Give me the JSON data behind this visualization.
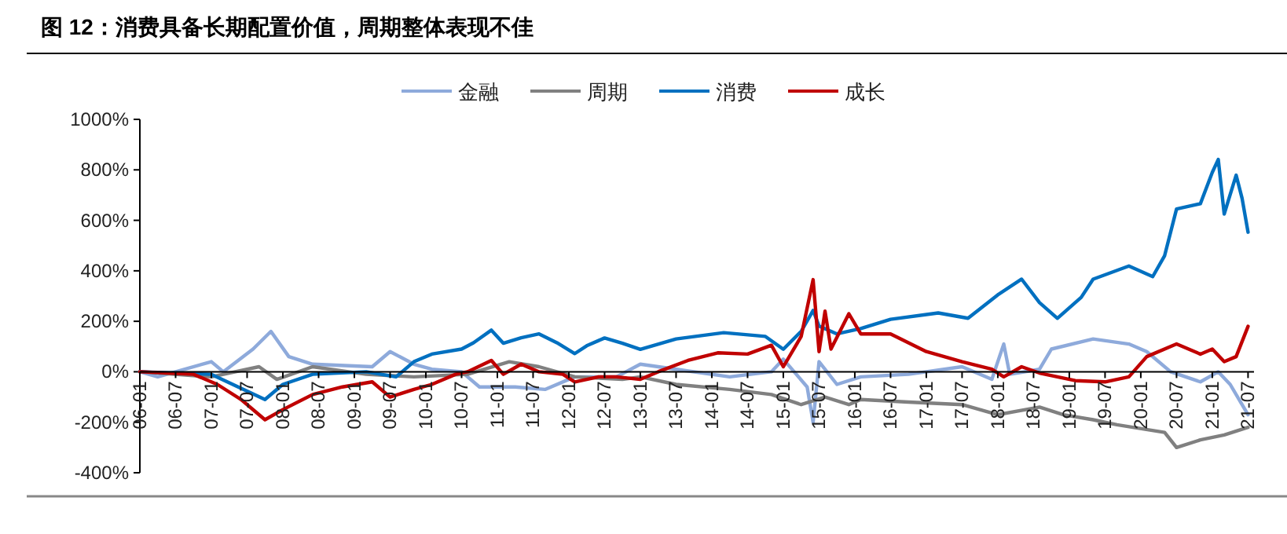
{
  "chart_data": {
    "type": "line",
    "title": "图 12：消费具备长期配置价值，周期整体表现不佳",
    "legend": "top",
    "grid": false,
    "line_style": "solid",
    "xlim": [
      "2006-01",
      "2021-08"
    ],
    "xticks": [
      {
        "value": "2006-01",
        "label": "06-01"
      },
      {
        "value": "2006-07",
        "label": "06-07"
      },
      {
        "value": "2007-01",
        "label": "07-01"
      },
      {
        "value": "2007-07",
        "label": "07-07"
      },
      {
        "value": "2008-01",
        "label": "08-01"
      },
      {
        "value": "2008-07",
        "label": "08-07"
      },
      {
        "value": "2009-01",
        "label": "09-01"
      },
      {
        "value": "2009-07",
        "label": "09-07"
      },
      {
        "value": "2010-01",
        "label": "10-01"
      },
      {
        "value": "2010-07",
        "label": "10-07"
      },
      {
        "value": "2011-01",
        "label": "11-01"
      },
      {
        "value": "2011-07",
        "label": "11-07"
      },
      {
        "value": "2012-01",
        "label": "12-01"
      },
      {
        "value": "2012-07",
        "label": "12-07"
      },
      {
        "value": "2013-01",
        "label": "13-01"
      },
      {
        "value": "2013-07",
        "label": "13-07"
      },
      {
        "value": "2014-01",
        "label": "14-01"
      },
      {
        "value": "2014-07",
        "label": "14-07"
      },
      {
        "value": "2015-01",
        "label": "15-01"
      },
      {
        "value": "2015-07",
        "label": "15-07"
      },
      {
        "value": "2016-01",
        "label": "16-01"
      },
      {
        "value": "2016-07",
        "label": "16-07"
      },
      {
        "value": "2017-01",
        "label": "17-01"
      },
      {
        "value": "2017-07",
        "label": "17-07"
      },
      {
        "value": "2018-01",
        "label": "18-01"
      },
      {
        "value": "2018-07",
        "label": "18-07"
      },
      {
        "value": "2019-01",
        "label": "19-01"
      },
      {
        "value": "2019-07",
        "label": "19-07"
      },
      {
        "value": "2020-01",
        "label": "20-01"
      },
      {
        "value": "2020-07",
        "label": "20-07"
      },
      {
        "value": "2021-01",
        "label": "21-01"
      },
      {
        "value": "2021-07",
        "label": "21-07"
      }
    ],
    "ylim": [
      -400,
      1000
    ],
    "yticks": [
      {
        "value": -400,
        "label": "-400%"
      },
      {
        "value": -200,
        "label": "-200%"
      },
      {
        "value": 0,
        "label": "0%"
      },
      {
        "value": 200,
        "label": "200%"
      },
      {
        "value": 400,
        "label": "400%"
      },
      {
        "value": 600,
        "label": "600%"
      },
      {
        "value": 800,
        "label": "800%"
      },
      {
        "value": 1000,
        "label": "1000%"
      }
    ],
    "series": [
      {
        "name": "金融",
        "color": "#8eaadb",
        "x": [
          "2006-01",
          "2006-04",
          "2007-01",
          "2007-03",
          "2007-08",
          "2007-11",
          "2008-02",
          "2008-06",
          "2009-04",
          "2009-07",
          "2009-11",
          "2010-02",
          "2010-07",
          "2010-10",
          "2011-04",
          "2011-09",
          "2012-02",
          "2012-09",
          "2013-01",
          "2013-07",
          "2014-04",
          "2014-11",
          "2015-01",
          "2015-05",
          "2015-06",
          "2015-07",
          "2015-10",
          "2016-02",
          "2016-10",
          "2017-07",
          "2017-12",
          "2018-02",
          "2018-03",
          "2018-08",
          "2018-10",
          "2019-05",
          "2019-11",
          "2020-02",
          "2020-06",
          "2020-11",
          "2021-02",
          "2021-04",
          "2021-07"
        ],
        "values": [
          0,
          -20,
          40,
          0,
          90,
          160,
          60,
          30,
          20,
          80,
          30,
          10,
          0,
          -60,
          -60,
          -70,
          -20,
          -20,
          30,
          10,
          -20,
          0,
          50,
          -60,
          -200,
          40,
          -50,
          -20,
          -10,
          20,
          -30,
          110,
          -10,
          10,
          90,
          130,
          110,
          80,
          0,
          -40,
          0,
          -50,
          -170
        ]
      },
      {
        "name": "周期",
        "color": "#808080",
        "x": [
          "2006-01",
          "2007-01",
          "2007-09",
          "2007-12",
          "2008-06",
          "2009-03",
          "2009-11",
          "2010-08",
          "2011-03",
          "2011-08",
          "2012-02",
          "2012-10",
          "2013-01",
          "2013-07",
          "2014-04",
          "2014-11",
          "2015-04",
          "2015-08",
          "2015-12",
          "2016-02",
          "2016-10",
          "2017-07",
          "2018-01",
          "2018-08",
          "2018-12",
          "2019-05",
          "2019-09",
          "2020-05",
          "2020-07",
          "2020-11",
          "2021-03",
          "2021-07"
        ],
        "values": [
          0,
          -20,
          20,
          -30,
          20,
          -10,
          -20,
          -10,
          40,
          20,
          -20,
          -30,
          -20,
          -50,
          -70,
          -90,
          -130,
          -100,
          -130,
          -110,
          -120,
          -130,
          -170,
          -140,
          -170,
          -190,
          -210,
          -240,
          -300,
          -270,
          -250,
          -220
        ]
      },
      {
        "name": "消费",
        "color": "#0070c0",
        "x": [
          "2006-01",
          "2006-07",
          "2007-01",
          "2007-10",
          "2008-01",
          "2008-06",
          "2009-03",
          "2009-08",
          "2009-11",
          "2010-02",
          "2010-07",
          "2010-09",
          "2010-12",
          "2011-02",
          "2011-05",
          "2011-08",
          "2011-11",
          "2012-02",
          "2012-04",
          "2012-07",
          "2012-10",
          "2013-01",
          "2013-07",
          "2014-03",
          "2014-10",
          "2015-01",
          "2015-04",
          "2015-06",
          "2015-07",
          "2015-10",
          "2016-02",
          "2016-07",
          "2017-03",
          "2017-08",
          "2018-01",
          "2018-05",
          "2018-08",
          "2018-11",
          "2019-03",
          "2019-05",
          "2019-11",
          "2020-03",
          "2020-05",
          "2020-07",
          "2020-11",
          "2021-01",
          "2021-02",
          "2021-03",
          "2021-05",
          "2021-06",
          "2021-07"
        ],
        "values": [
          0,
          -5,
          -10,
          -110,
          -50,
          -10,
          0,
          -20,
          40,
          70,
          90,
          115,
          165,
          113,
          135,
          150,
          115,
          72,
          103,
          134,
          113,
          89,
          130,
          155,
          140,
          89,
          160,
          243,
          181,
          150,
          171,
          208,
          233,
          212,
          305,
          367,
          274,
          212,
          295,
          367,
          419,
          377,
          460,
          645,
          666,
          790,
          841,
          625,
          779,
          687,
          553
        ]
      },
      {
        "name": "成长",
        "color": "#c00000",
        "x": [
          "2006-01",
          "2006-10",
          "2007-02",
          "2007-06",
          "2007-10",
          "2008-01",
          "2008-06",
          "2008-11",
          "2009-04",
          "2009-07",
          "2009-11",
          "2010-02",
          "2010-06",
          "2010-08",
          "2010-12",
          "2011-02",
          "2011-05",
          "2011-08",
          "2011-12",
          "2012-02",
          "2012-06",
          "2012-09",
          "2013-01",
          "2013-04",
          "2013-09",
          "2014-02",
          "2014-07",
          "2014-11",
          "2015-01",
          "2015-04",
          "2015-06",
          "2015-07",
          "2015-08",
          "2015-09",
          "2015-12",
          "2016-02",
          "2016-07",
          "2017-01",
          "2017-07",
          "2017-12",
          "2018-02",
          "2018-05",
          "2018-08",
          "2019-02",
          "2019-07",
          "2019-11",
          "2020-02",
          "2020-07",
          "2020-11",
          "2021-01",
          "2021-03",
          "2021-05",
          "2021-07"
        ],
        "values": [
          0,
          -10,
          -50,
          -110,
          -190,
          -150,
          -90,
          -60,
          -40,
          -100,
          -70,
          -50,
          -10,
          0,
          45,
          -10,
          30,
          0,
          -10,
          -40,
          -20,
          -20,
          -30,
          0,
          45,
          75,
          70,
          105,
          20,
          140,
          365,
          80,
          240,
          90,
          230,
          150,
          150,
          80,
          40,
          10,
          -20,
          20,
          -5,
          -35,
          -40,
          -20,
          60,
          110,
          70,
          90,
          40,
          60,
          180
        ]
      }
    ]
  }
}
